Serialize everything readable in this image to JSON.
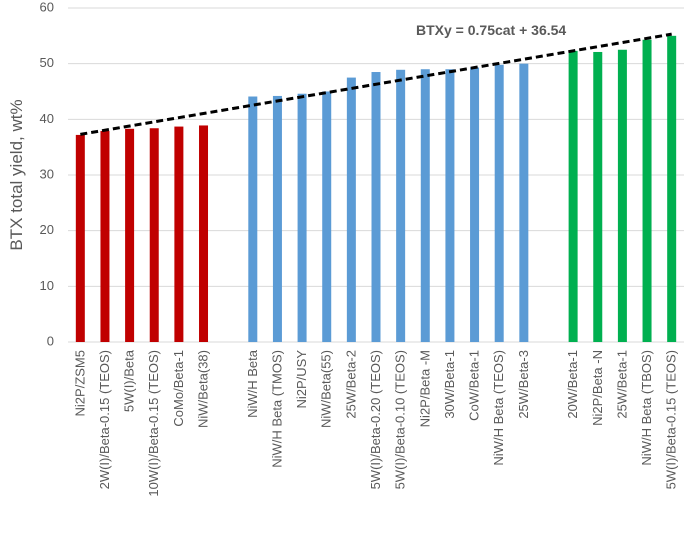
{
  "chart_data": {
    "type": "bar",
    "y_label": "BTX total yield, wt%",
    "categories": [
      "Ni2P/ZSM5",
      "2W(I)/Beta-0.15 (TEOS)",
      "5W(I)/Beta",
      "10W(I)/Beta-0.15 (TEOS)",
      "CoMo/Beta-1",
      "NiW/Beta(38)",
      null,
      "NiW/H Beta",
      "NiW/H Beta (TMOS)",
      "Ni2P/USY",
      "NiW/Beta(55)",
      "25W/Beta-2",
      "5W(I)/Beta-0.20 (TEOS)",
      "5W(I)/Beta-0.10 (TEOS)",
      "Ni2P/Beta -M",
      "30W/Beta-1",
      "CoW/Beta-1",
      "NiW/H Beta (TEOS)",
      "25W/Beta-3",
      null,
      "20W/Beta-1",
      "Ni2P/Beta -N",
      "25W/Beta-1",
      "NiW/H Beta (TBOS)",
      "5W(I)/Beta-0.15 (TEOS)"
    ],
    "values": [
      37.2,
      37.9,
      38.3,
      38.4,
      38.7,
      38.9,
      null,
      44.1,
      44.2,
      44.6,
      45.0,
      47.5,
      48.5,
      48.9,
      49.0,
      49.0,
      49.3,
      49.8,
      50.0,
      null,
      52.3,
      52.1,
      52.5,
      54.3,
      55.0
    ],
    "colors": [
      "#c00000",
      "#c00000",
      "#c00000",
      "#c00000",
      "#c00000",
      "#c00000",
      null,
      "#5b9bd5",
      "#5b9bd5",
      "#5b9bd5",
      "#5b9bd5",
      "#5b9bd5",
      "#5b9bd5",
      "#5b9bd5",
      "#5b9bd5",
      "#5b9bd5",
      "#5b9bd5",
      "#5b9bd5",
      "#5b9bd5",
      null,
      "#00b050",
      "#00b050",
      "#00b050",
      "#00b050",
      "#00b050"
    ],
    "trendline": {
      "label": "BTXy = 0.75cat + 36.54",
      "values": [
        37.3,
        55.3
      ],
      "color": "#000000"
    },
    "ylim": [
      0,
      60
    ],
    "yticks": [
      0,
      10,
      20,
      30,
      40,
      50,
      60
    ],
    "grid": true
  }
}
